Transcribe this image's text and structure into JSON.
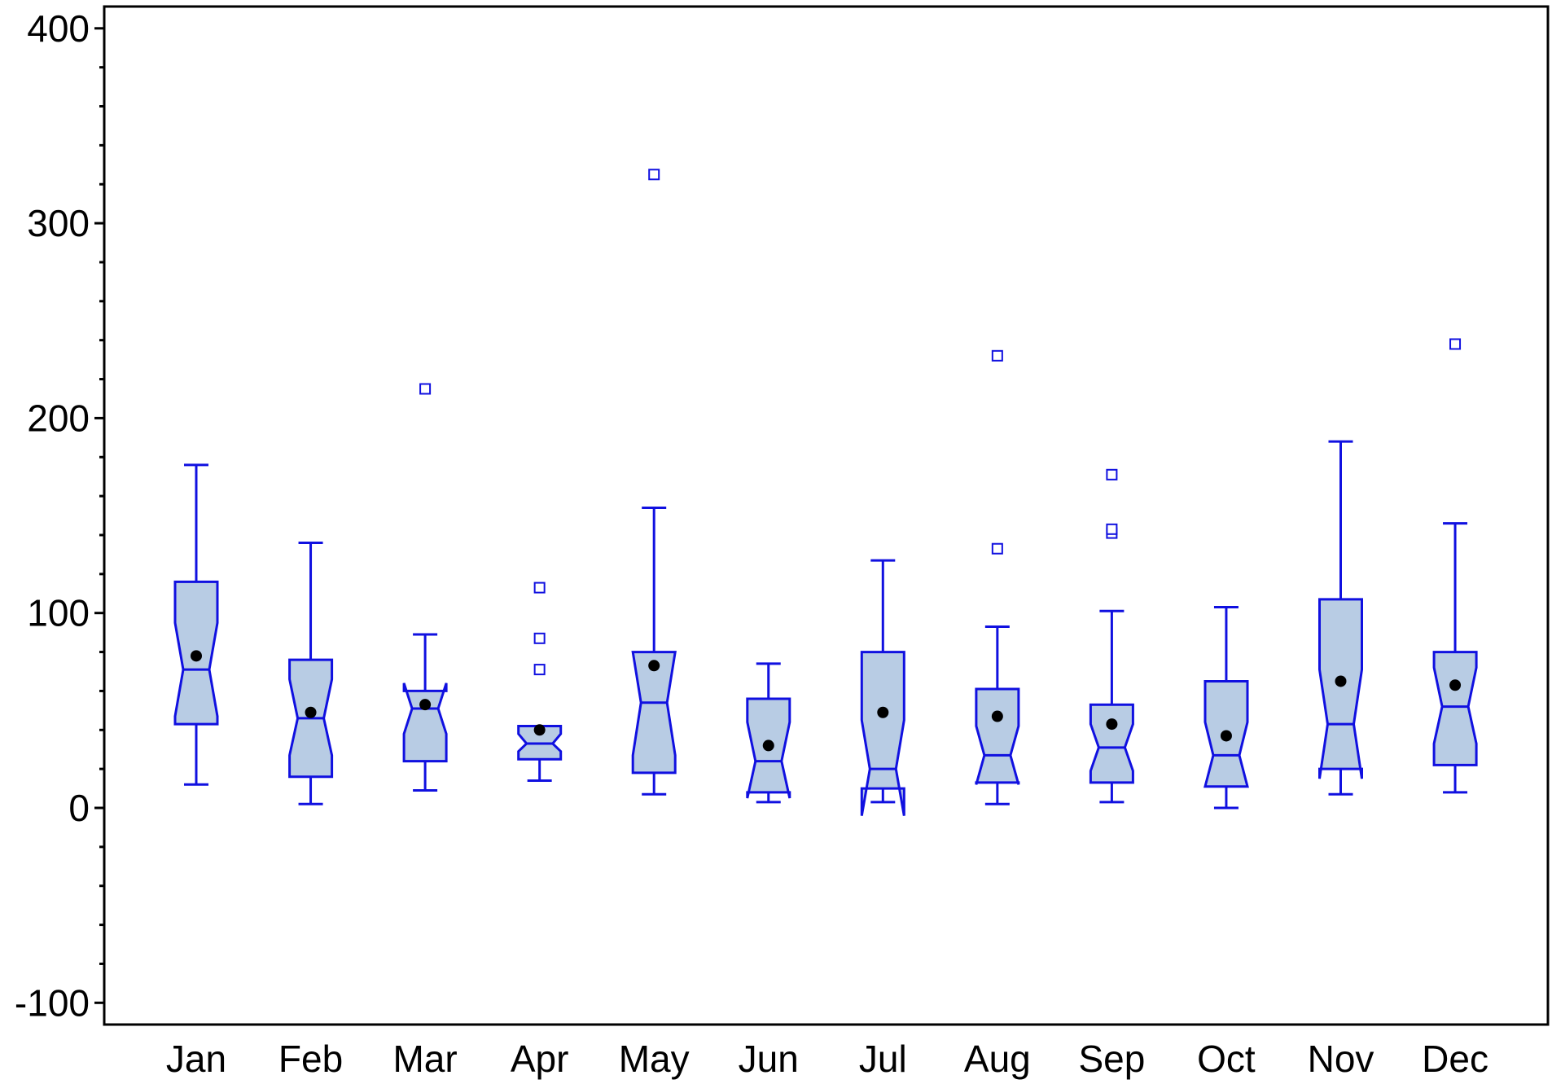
{
  "chart_data": {
    "type": "box",
    "title": "",
    "xlabel": "",
    "ylabel": "",
    "ylim": [
      -100,
      400
    ],
    "y_ticks": [
      "400",
      "300",
      "200",
      "100",
      "0",
      "-100"
    ],
    "y_tick_values": [
      400,
      300,
      200,
      100,
      0,
      -100
    ],
    "grid": false,
    "notched": true,
    "categories": [
      "Jan",
      "Feb",
      "Mar",
      "Apr",
      "May",
      "Jun",
      "Jul",
      "Aug",
      "Sep",
      "Oct",
      "Nov",
      "Dec"
    ],
    "boxes": [
      {
        "whisker_low": 12,
        "q1": 43,
        "notch_low": 47,
        "median": 71,
        "notch_high": 95,
        "q3": 116,
        "whisker_high": 176,
        "mean": 78,
        "outliers": []
      },
      {
        "whisker_low": 2,
        "q1": 16,
        "notch_low": 27,
        "median": 46,
        "notch_high": 66,
        "q3": 76,
        "whisker_high": 136,
        "mean": 49,
        "outliers": []
      },
      {
        "whisker_low": 9,
        "q1": 24,
        "notch_low": 38,
        "median": 51,
        "notch_high": 64,
        "q3": 60,
        "whisker_high": 89,
        "mean": 53,
        "outliers": [
          215
        ]
      },
      {
        "whisker_low": 14,
        "q1": 25,
        "notch_low": 29,
        "median": 33,
        "notch_high": 38,
        "q3": 42,
        "whisker_high": 42,
        "mean": 40,
        "outliers": [
          71,
          87,
          113
        ]
      },
      {
        "whisker_low": 7,
        "q1": 18,
        "notch_low": 27,
        "median": 54,
        "notch_high": 80,
        "q3": 80,
        "whisker_high": 154,
        "mean": 73,
        "outliers": [
          325
        ]
      },
      {
        "whisker_low": 3,
        "q1": 8,
        "notch_low": 5,
        "median": 24,
        "notch_high": 44,
        "q3": 56,
        "whisker_high": 74,
        "mean": 32,
        "outliers": []
      },
      {
        "whisker_low": 3,
        "q1": 10,
        "notch_low": -4,
        "median": 20,
        "notch_high": 45,
        "q3": 80,
        "whisker_high": 127,
        "mean": 49,
        "outliers": []
      },
      {
        "whisker_low": 2,
        "q1": 13,
        "notch_low": 12,
        "median": 27,
        "notch_high": 42,
        "q3": 61,
        "whisker_high": 93,
        "mean": 47,
        "outliers": [
          133,
          232
        ]
      },
      {
        "whisker_low": 3,
        "q1": 13,
        "notch_low": 19,
        "median": 31,
        "notch_high": 43,
        "q3": 53,
        "whisker_high": 101,
        "mean": 43,
        "outliers": [
          141,
          143,
          171
        ]
      },
      {
        "whisker_low": 0,
        "q1": 11,
        "notch_low": 11,
        "median": 27,
        "notch_high": 44,
        "q3": 65,
        "whisker_high": 103,
        "mean": 37,
        "outliers": []
      },
      {
        "whisker_low": 7,
        "q1": 20,
        "notch_low": 15,
        "median": 43,
        "notch_high": 71,
        "q3": 107,
        "whisker_high": 188,
        "mean": 65,
        "outliers": []
      },
      {
        "whisker_low": 8,
        "q1": 22,
        "notch_low": 33,
        "median": 52,
        "notch_high": 72,
        "q3": 80,
        "whisker_high": 146,
        "mean": 63,
        "outliers": [
          238
        ]
      }
    ],
    "colors": {
      "box_fill": "#b8cce4",
      "box_stroke": "#1010e0",
      "outlier": "#1010e0",
      "mean_marker": "#000000",
      "axis": "#000000"
    }
  }
}
